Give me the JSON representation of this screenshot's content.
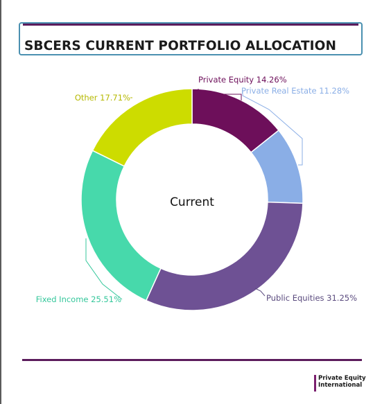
{
  "title": "SBCERS CURRENT PORTFOLIO ALLOCATION",
  "chart_data": {
    "type": "pie",
    "center_label": "Current",
    "slices": [
      {
        "label": "Private Equity 14.26%",
        "value": 14.26,
        "color": "#6d0f5a",
        "label_color": "#6d0f5a"
      },
      {
        "label": "Private Real Estate 11.28%",
        "value": 11.28,
        "color": "#8aaee6",
        "label_color": "#8aaee6"
      },
      {
        "label": "Public Equities 31.25%",
        "value": 31.25,
        "color": "#6e5194",
        "label_color": "#5a4a7e"
      },
      {
        "label": "Fixed Income 25.51%",
        "value": 25.51,
        "color": "#47d9ab",
        "label_color": "#34c79b"
      },
      {
        "label": "Other 17.71%",
        "value": 17.71,
        "color": "#cddc00",
        "label_color": "#b5b800"
      }
    ]
  },
  "logo": {
    "line1": "Private Equity",
    "line2": "International",
    "color": "#7a1f6e"
  }
}
